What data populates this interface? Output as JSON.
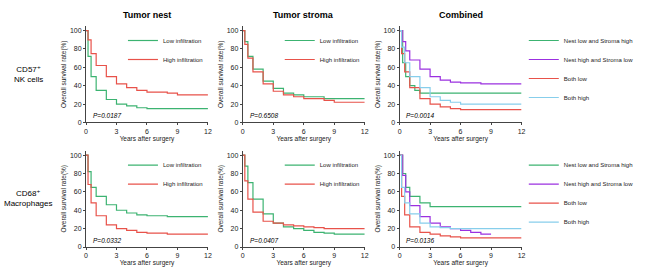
{
  "chart_data": [
    {
      "type": "step",
      "title": "Tumor nest",
      "subtitle": "CD57⁺\nNK cells",
      "x_label": "Years after surgery",
      "y_label": "Overall survival rate(%)",
      "annotations": [
        "P=0.0187"
      ],
      "series": [
        {
          "name": "Low infiltration",
          "color": "#3cb371",
          "x": [
            0,
            0.2,
            0.5,
            1,
            2,
            3,
            4,
            5,
            6,
            8,
            9,
            12
          ],
          "values": [
            100,
            72,
            50,
            35,
            25,
            20,
            18,
            16,
            15,
            15,
            15,
            15
          ]
        },
        {
          "name": "High infiltration",
          "color": "#e8524a",
          "x": [
            0,
            0.2,
            0.5,
            1,
            2,
            3,
            4,
            5,
            6,
            8,
            9,
            12
          ],
          "values": [
            100,
            90,
            75,
            62,
            50,
            42,
            38,
            35,
            33,
            32,
            30,
            30
          ]
        }
      ],
      "xlim": [
        0,
        12
      ],
      "xticks": [
        0,
        3,
        6,
        9,
        12
      ],
      "ylim": [
        0,
        105
      ],
      "yticks": [
        0,
        20,
        40,
        60,
        80,
        100
      ],
      "grid": false,
      "legend": "upper right"
    },
    {
      "type": "step",
      "title": "Tumor stroma",
      "x_label": "Years after surgery",
      "y_label": "Overall survival rate(%)",
      "annotations": [
        "P=0.6508"
      ],
      "series": [
        {
          "name": "Low infiltration",
          "color": "#3cb371",
          "x": [
            0,
            0.2,
            0.5,
            1,
            2,
            3,
            4,
            5,
            6,
            8,
            9,
            12
          ],
          "values": [
            100,
            88,
            72,
            58,
            45,
            37,
            32,
            30,
            28,
            26,
            26,
            26
          ]
        },
        {
          "name": "High infiltration",
          "color": "#e8524a",
          "x": [
            0,
            0.2,
            0.5,
            1,
            2,
            3,
            4,
            5,
            6,
            8,
            9,
            10,
            12
          ],
          "values": [
            100,
            85,
            70,
            55,
            42,
            34,
            30,
            28,
            26,
            24,
            22,
            22,
            22
          ]
        }
      ],
      "xlim": [
        0,
        12
      ],
      "xticks": [
        0,
        3,
        6,
        9,
        12
      ],
      "ylim": [
        0,
        105
      ],
      "yticks": [
        0,
        20,
        40,
        60,
        80,
        100
      ],
      "grid": false,
      "legend": "upper right"
    },
    {
      "type": "step",
      "title": "Combined",
      "x_label": "Years after surgery",
      "y_label": "Overall survival rate(%)",
      "annotations": [
        "P=0.0014"
      ],
      "series": [
        {
          "name": "Nest low and Stroma high",
          "color": "#3cb371",
          "x": [
            0,
            0.3,
            0.6,
            1,
            1.5,
            2,
            12
          ],
          "values": [
            100,
            65,
            50,
            40,
            35,
            32,
            32
          ]
        },
        {
          "name": "Nest high and Stroma low",
          "color": "#9b30e0",
          "x": [
            0,
            0.3,
            0.6,
            1,
            2,
            3,
            4,
            5,
            6,
            8,
            12
          ],
          "values": [
            100,
            88,
            78,
            68,
            58,
            50,
            46,
            44,
            43,
            42,
            42
          ]
        },
        {
          "name": "Both low",
          "color": "#e8524a",
          "x": [
            0,
            0.2,
            0.5,
            1,
            2,
            3,
            4,
            5,
            6,
            8,
            12
          ],
          "values": [
            100,
            75,
            55,
            38,
            26,
            20,
            17,
            15,
            14,
            14,
            14
          ]
        },
        {
          "name": "Both high",
          "color": "#87ceeb",
          "x": [
            0,
            0.2,
            0.5,
            1,
            2,
            3,
            4,
            5,
            6,
            8,
            9,
            12
          ],
          "values": [
            100,
            82,
            65,
            50,
            38,
            28,
            24,
            22,
            20,
            20,
            20,
            20
          ]
        }
      ],
      "xlim": [
        0,
        12
      ],
      "xticks": [
        0,
        3,
        6,
        9,
        12
      ],
      "ylim": [
        0,
        105
      ],
      "yticks": [
        0,
        20,
        40,
        60,
        80,
        100
      ],
      "grid": false,
      "legend": "right"
    },
    {
      "type": "step",
      "subtitle": "CD68⁺\nMacrophages",
      "x_label": "Years after surgery",
      "y_label": "Overall survival rate(%)",
      "annotations": [
        "P=0.0332"
      ],
      "series": [
        {
          "name": "Low infiltration",
          "color": "#3cb371",
          "x": [
            0,
            0.2,
            0.5,
            1,
            2,
            3,
            4,
            5,
            6,
            8,
            9,
            12
          ],
          "values": [
            100,
            82,
            65,
            55,
            46,
            40,
            37,
            35,
            34,
            33,
            33,
            33
          ]
        },
        {
          "name": "High infiltration",
          "color": "#e8524a",
          "x": [
            0,
            0.2,
            0.5,
            1,
            2,
            3,
            4,
            5,
            6,
            8,
            9,
            12
          ],
          "values": [
            100,
            68,
            48,
            34,
            24,
            20,
            18,
            16,
            15,
            14,
            14,
            14
          ]
        }
      ],
      "xlim": [
        0,
        12
      ],
      "xticks": [
        0,
        3,
        6,
        9,
        12
      ],
      "ylim": [
        0,
        105
      ],
      "yticks": [
        0,
        20,
        40,
        60,
        80,
        100
      ],
      "grid": false,
      "legend": "upper right"
    },
    {
      "type": "step",
      "x_label": "Years after surgery",
      "y_label": "Overall survival rate(%)",
      "annotations": [
        "P=0.0407"
      ],
      "series": [
        {
          "name": "Low infiltration",
          "color": "#3cb371",
          "x": [
            0,
            0.2,
            0.5,
            1,
            2,
            3,
            4,
            5,
            6,
            7,
            8,
            9,
            12
          ],
          "values": [
            100,
            88,
            70,
            52,
            36,
            26,
            22,
            20,
            18,
            16,
            15,
            14,
            14
          ]
        },
        {
          "name": "High infiltration",
          "color": "#e8524a",
          "x": [
            0,
            0.2,
            0.5,
            1,
            2,
            3,
            4,
            5,
            6,
            7,
            8,
            9,
            12
          ],
          "values": [
            100,
            72,
            52,
            38,
            28,
            26,
            24,
            23,
            22,
            21,
            20,
            20,
            20
          ]
        }
      ],
      "xlim": [
        0,
        12
      ],
      "xticks": [
        0,
        3,
        6,
        9,
        12
      ],
      "ylim": [
        0,
        105
      ],
      "yticks": [
        0,
        20,
        40,
        60,
        80,
        100
      ],
      "grid": false,
      "legend": "upper right"
    },
    {
      "type": "step",
      "x_label": "Years after surgery",
      "y_label": "Overall survival rate(%)",
      "annotations": [
        "P=0.0136"
      ],
      "series": [
        {
          "name": "Nest low and Stroma high",
          "color": "#3cb371",
          "x": [
            0,
            0.3,
            0.6,
            1,
            2,
            3,
            4,
            5,
            8,
            12
          ],
          "values": [
            100,
            80,
            65,
            55,
            48,
            44,
            44,
            44,
            44,
            44
          ]
        },
        {
          "name": "Nest high and Stroma low",
          "color": "#9b30e0",
          "x": [
            0,
            0.3,
            0.6,
            1,
            2,
            3,
            4,
            5,
            6,
            7,
            8,
            9
          ],
          "values": [
            100,
            78,
            60,
            45,
            33,
            26,
            22,
            20,
            18,
            16,
            14,
            14
          ]
        },
        {
          "name": "Both low",
          "color": "#e8524a",
          "x": [
            0,
            0.2,
            0.5,
            1,
            2,
            3,
            4,
            5,
            6,
            7,
            12
          ],
          "values": [
            100,
            55,
            35,
            22,
            16,
            14,
            12,
            11,
            10,
            10,
            10
          ]
        },
        {
          "name": "Both high",
          "color": "#87ceeb",
          "x": [
            0,
            0.2,
            0.5,
            1,
            2,
            3,
            4,
            5,
            6,
            7,
            9,
            12
          ],
          "values": [
            100,
            65,
            48,
            36,
            26,
            22,
            21,
            20,
            20,
            20,
            20,
            20
          ]
        }
      ],
      "xlim": [
        0,
        12
      ],
      "xticks": [
        0,
        3,
        6,
        9,
        12
      ],
      "ylim": [
        0,
        105
      ],
      "yticks": [
        0,
        20,
        40,
        60,
        80,
        100
      ],
      "grid": false,
      "legend": "right"
    }
  ]
}
